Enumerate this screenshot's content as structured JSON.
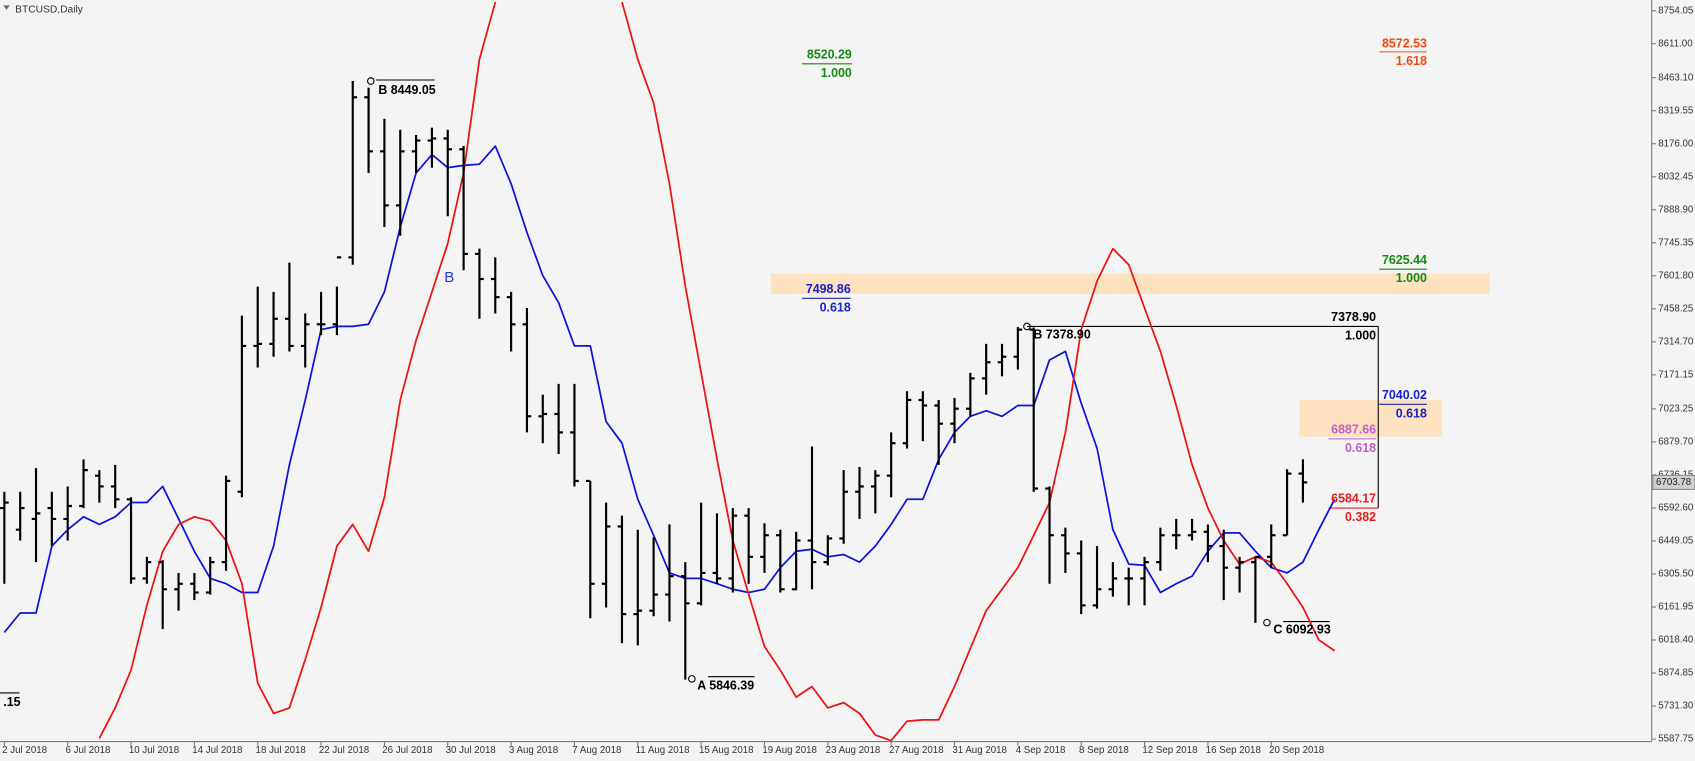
{
  "chart_data": {
    "type": "ohlc",
    "title": "BTCUSD,Daily",
    "categories": [
      "2 Jul 2018",
      null,
      null,
      null,
      "6 Jul 2018",
      null,
      null,
      null,
      "10 Jul 2018",
      null,
      null,
      null,
      "14 Jul 2018",
      null,
      null,
      null,
      "18 Jul 2018",
      null,
      null,
      null,
      "22 Jul 2018",
      null,
      null,
      null,
      "26 Jul 2018",
      null,
      null,
      null,
      "30 Jul 2018",
      null,
      null,
      null,
      "3 Aug 2018",
      null,
      null,
      null,
      "7 Aug 2018",
      null,
      null,
      null,
      "11 Aug 2018",
      null,
      null,
      null,
      "15 Aug 2018",
      null,
      null,
      null,
      "19 Aug 2018",
      null,
      null,
      null,
      "23 Aug 2018",
      null,
      null,
      null,
      "27 Aug 2018",
      null,
      null,
      null,
      "31 Aug 2018",
      null,
      null,
      null,
      "4 Sep 2018",
      null,
      null,
      null,
      "8 Sep 2018",
      null,
      null,
      null,
      "12 Sep 2018",
      null,
      null,
      null,
      "16 Sep 2018",
      null,
      null,
      null,
      "20 Sep 2018",
      null,
      null,
      null,
      null
    ],
    "ohlc": {
      "color": "#000000",
      "open": [
        6592,
        6498,
        6545,
        6592,
        6545,
        6601,
        6733,
        6686,
        6630,
        6286,
        6357,
        6239,
        6263,
        6225,
        6357,
        6663,
        7297,
        7306,
        7415,
        7297,
        7391,
        7391,
        7682,
        8378,
        8143,
        7908,
        8143,
        8190,
        8199,
        8152,
        7697,
        7588,
        7509,
        7391,
        6991,
        7001,
        6921,
        6710,
        6263,
        6512,
        6131,
        6146,
        6216,
        6296,
        6178,
        6310,
        6286,
        6559,
        6380,
        6474,
        6239,
        6451,
        6357,
        6460,
        6663,
        6686,
        6733,
        6874,
        7062,
        7038,
        6959,
        7024,
        7156,
        7226,
        7250,
        7368,
        6677,
        6474,
        6395,
        6169,
        6239,
        6286,
        6286,
        6357,
        6474,
        6474,
        6489,
        6427,
        6333,
        6357,
        6380,
        6474,
        6742,
        null,
        null
      ],
      "high": [
        6663,
        6663,
        6766,
        6663,
        6686,
        6804,
        6757,
        6780,
        6639,
        6380,
        6366,
        6310,
        6310,
        6380,
        6733,
        7429,
        7555,
        7532,
        7659,
        7438,
        7532,
        7555,
        8449.05,
        8420,
        8284,
        8237,
        8214,
        8246,
        8237,
        8166,
        7720,
        7682,
        7532,
        7462,
        7085,
        7132,
        7132,
        6710,
        6616,
        6559,
        6498,
        6465,
        6521,
        6357,
        6616,
        6569,
        6592,
        6592,
        6526,
        6498,
        6489,
        6860,
        6474,
        6757,
        6771,
        6757,
        6921,
        7100,
        7100,
        7062,
        7071,
        7180,
        7306,
        7306,
        7378.9,
        7377,
        6686,
        6507,
        6451,
        6427,
        6357,
        6333,
        6380,
        6507,
        6545,
        6545,
        6521,
        6498,
        6380,
        6380,
        6521,
        6761,
        6804,
        null,
        null
      ],
      "low": [
        6263,
        6451,
        6357,
        6427,
        6451,
        6592,
        6616,
        6592,
        6263,
        6263,
        6066,
        6146,
        6192,
        6216,
        6319,
        6639,
        7203,
        7250,
        7273,
        7203,
        7344,
        7344,
        7650,
        8049,
        7814,
        7776,
        8049,
        8072,
        7861,
        7626,
        7415,
        7438,
        7273,
        6921,
        6874,
        6827,
        6686,
        6113,
        6160,
        6005,
        5995,
        6122,
        6099,
        5846.39,
        6169,
        6263,
        6225,
        6263,
        6310,
        6225,
        6235,
        6239,
        6343,
        6437,
        6545,
        6569,
        6639,
        6851,
        6883,
        6780,
        6874,
        6991,
        7085,
        7165,
        7194,
        6663,
        6263,
        6310,
        6131,
        6155,
        6207,
        6169,
        6169,
        6319,
        6413,
        6451,
        6357,
        6192,
        6225,
        6092.93,
        6333,
        6474,
        6616,
        null,
        null
      ],
      "close": [
        6616,
        6592,
        6569,
        6545,
        6601,
        6757,
        6686,
        6630,
        6286,
        6357,
        6239,
        6263,
        6225,
        6357,
        6710,
        7297,
        7306,
        7415,
        7297,
        7391,
        7391,
        7682,
        8378,
        8143,
        7908,
        8143,
        8190,
        8199,
        8152,
        7697,
        7588,
        7509,
        7391,
        6991,
        7001,
        6921,
        6710,
        6263,
        6512,
        6131,
        6146,
        6216,
        6296,
        6178,
        6310,
        6286,
        6559,
        6380,
        6474,
        6239,
        6451,
        6357,
        6460,
        6663,
        6686,
        6733,
        6874,
        7062,
        7038,
        6959,
        7024,
        7156,
        7226,
        7250,
        7368,
        6677,
        6474,
        6395,
        6169,
        6239,
        6286,
        6286,
        6357,
        6474,
        6474,
        6489,
        6427,
        6333,
        6357,
        6380,
        6474,
        6742,
        6703.78,
        null,
        null
      ]
    },
    "series": [
      {
        "color": "#0a14d8",
        "values": [
          6051,
          6136,
          6136,
          6427,
          6498,
          6554,
          6521,
          6554,
          6616,
          6616,
          6686,
          6545,
          6404,
          6286,
          6263,
          6225,
          6225,
          6427,
          6780,
          7062,
          7368,
          7382,
          7382,
          7391,
          7532,
          7814,
          8049,
          8129,
          8072,
          8082,
          8087,
          8166,
          8002,
          7791,
          7603,
          7485,
          7297,
          7297,
          6968,
          6874,
          6630,
          6474,
          6310,
          6286,
          6286,
          6263,
          6239,
          6225,
          6239,
          6333,
          6404,
          6413,
          6380,
          6390,
          6357,
          6427,
          6521,
          6630,
          6630,
          6804,
          6921,
          6991,
          7015,
          6991,
          7038,
          7038,
          7236,
          7273,
          7048,
          6851,
          6498,
          6348,
          6343,
          6225,
          6263,
          6296,
          6404,
          6484,
          6484,
          6404,
          6333,
          6310,
          6357,
          6498,
          6630
        ]
      },
      {
        "color": "#ee1111",
        "values": [
          null,
          null,
          null,
          null,
          null,
          null,
          5591,
          5723,
          5887,
          6169,
          6404,
          6521,
          6554,
          6536,
          6451,
          6263,
          5831,
          5699,
          5723,
          5934,
          6160,
          6427,
          6521,
          6404,
          6639,
          7062,
          7321,
          7532,
          7743,
          8049,
          8543,
          8792,
          null,
          null,
          null,
          null,
          null,
          null,
          null,
          8792,
          8543,
          8354,
          8002,
          7556,
          7180,
          6804,
          6451,
          6216,
          5990,
          5887,
          5770,
          5816,
          5723,
          5746,
          5699,
          5605,
          5581,
          5666,
          5671,
          5671,
          5816,
          5981,
          6146,
          6239,
          6333,
          6474,
          6616,
          6921,
          7368,
          7579,
          7720,
          7650,
          7462,
          7273,
          7038,
          6780,
          6592,
          6451,
          6348,
          6380,
          6357,
          6263,
          6160,
          6019,
          5972
        ]
      }
    ],
    "ylim": [
      5577,
      8801
    ],
    "yticks": [
      8754.05,
      {
        "value": 8611,
        "label": "8611.00"
      },
      {
        "value": 8463.1,
        "label": "8463.10"
      },
      8319.55,
      {
        "value": 8176,
        "label": "8176.00"
      },
      8032.45,
      {
        "value": 7888.9,
        "label": "7888.90"
      },
      7745.35,
      {
        "value": 7601.8,
        "label": "7601.80"
      },
      7458.25,
      {
        "value": 7314.7,
        "label": "7314.70"
      },
      7171.15,
      7023.25,
      {
        "value": 6879.7,
        "label": "6879.70"
      },
      6736.15,
      {
        "value": 6592.6,
        "label": "6592.60"
      },
      6449.05,
      {
        "value": 6305.5,
        "label": "6305.50"
      },
      6161.95,
      {
        "value": 6018.4,
        "label": "6018.40"
      },
      5874.85,
      {
        "value": 5731.3,
        "label": "5731.30"
      },
      5587.75
    ],
    "current_price": 6703.78,
    "grid": false,
    "annotations": [
      {
        "text": "B 8449.05",
        "color": "#000000"
      },
      {
        "text": "A 5846.39",
        "color": "#000000"
      },
      {
        "text": "B 7378.90",
        "color": "#000000"
      },
      {
        "text": "C 6092.93",
        "color": "#000000"
      },
      {
        "text": "8520.29",
        "color": "#138a13"
      },
      {
        "text": "1.000",
        "color": "#138a13"
      },
      {
        "text": "8572.53",
        "color": "#f04a10"
      },
      {
        "text": "1.618",
        "color": "#f04a10"
      },
      {
        "text": "7625.44",
        "color": "#138a13"
      },
      {
        "text": "1.000",
        "color": "#138a13"
      },
      {
        "text": "7498.86",
        "color": "#1822c8"
      },
      {
        "text": "0.618",
        "color": "#1822c8"
      },
      {
        "text": "7378.90",
        "color": "#000000"
      },
      {
        "text": "1.000",
        "color": "#000000"
      },
      {
        "text": "7040.02",
        "color": "#1822c8"
      },
      {
        "text": "0.618",
        "color": "#1822c8"
      },
      {
        "text": "6887.66",
        "color": "#c35ec3"
      },
      {
        "text": "0.618",
        "color": "#c35ec3"
      },
      {
        "text": "6584.17",
        "color": "#e81c1c"
      },
      {
        "text": "0.382",
        "color": "#e81c1c"
      },
      {
        "text": "B",
        "color": "#2a3ad0"
      },
      {
        "text": ".15",
        "color": "#000000"
      }
    ]
  }
}
